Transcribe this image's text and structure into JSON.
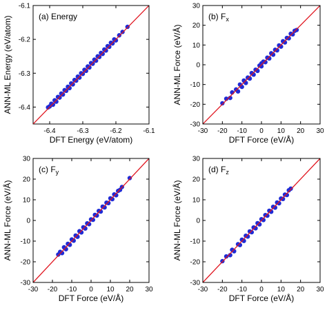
{
  "colors": {
    "points": "#1f2bd6",
    "line": "#e0141e",
    "axes": "#000000"
  },
  "chart_data": [
    {
      "type": "scatter",
      "panel_label": "(a) Energy",
      "xlabel": "DFT Energy (eV/atom)",
      "ylabel": "ANN-ML Energy (eV/atom)",
      "xlim": [
        -6.45,
        -6.1
      ],
      "ylim": [
        -6.45,
        -6.1
      ],
      "xticks": [
        "-6.4",
        "-6.3",
        "-6.2",
        "-6.1"
      ],
      "yticks": [
        "-6.4",
        "-6.3",
        "-6.2",
        "-6.1"
      ],
      "reference_line": "y = x",
      "series": [
        {
          "points": [
            [
              -6.405,
              -6.401
            ],
            [
              -6.4,
              -6.398
            ],
            [
              -6.395,
              -6.39
            ],
            [
              -6.39,
              -6.393
            ],
            [
              -6.385,
              -6.38
            ],
            [
              -6.38,
              -6.384
            ],
            [
              -6.375,
              -6.37
            ],
            [
              -6.37,
              -6.372
            ],
            [
              -6.365,
              -6.36
            ],
            [
              -6.36,
              -6.363
            ],
            [
              -6.355,
              -6.35
            ],
            [
              -6.35,
              -6.352
            ],
            [
              -6.345,
              -6.34
            ],
            [
              -6.34,
              -6.344
            ],
            [
              -6.335,
              -6.33
            ],
            [
              -6.33,
              -6.333
            ],
            [
              -6.325,
              -6.32
            ],
            [
              -6.32,
              -6.322
            ],
            [
              -6.315,
              -6.31
            ],
            [
              -6.31,
              -6.313
            ],
            [
              -6.305,
              -6.3
            ],
            [
              -6.3,
              -6.302
            ],
            [
              -6.295,
              -6.29
            ],
            [
              -6.29,
              -6.293
            ],
            [
              -6.285,
              -6.28
            ],
            [
              -6.28,
              -6.283
            ],
            [
              -6.275,
              -6.27
            ],
            [
              -6.27,
              -6.272
            ],
            [
              -6.265,
              -6.26
            ],
            [
              -6.26,
              -6.263
            ],
            [
              -6.255,
              -6.25
            ],
            [
              -6.25,
              -6.252
            ],
            [
              -6.245,
              -6.24
            ],
            [
              -6.24,
              -6.243
            ],
            [
              -6.235,
              -6.23
            ],
            [
              -6.23,
              -6.233
            ],
            [
              -6.225,
              -6.22
            ],
            [
              -6.22,
              -6.222
            ],
            [
              -6.215,
              -6.21
            ],
            [
              -6.21,
              -6.212
            ],
            [
              -6.205,
              -6.2
            ],
            [
              -6.2,
              -6.203
            ],
            [
              -6.19,
              -6.188
            ],
            [
              -6.18,
              -6.178
            ],
            [
              -6.165,
              -6.163
            ]
          ]
        }
      ]
    },
    {
      "type": "scatter",
      "panel_label": "(b) F",
      "panel_label_sub": "x",
      "xlabel": "DFT Force (eV/Å)",
      "ylabel": "ANN-ML Force (eV/Å)",
      "xlim": [
        -30,
        30
      ],
      "ylim": [
        -30,
        30
      ],
      "xticks": [
        "-30",
        "-20",
        "-10",
        "0",
        "10",
        "20",
        "30"
      ],
      "yticks": [
        "-30",
        "-20",
        "-10",
        "0",
        "10",
        "20",
        "30"
      ],
      "reference_line": "y = x",
      "series": [
        {
          "points": [
            [
              -20,
              -19.5
            ],
            [
              -18,
              -17.2
            ],
            [
              -16,
              -16.8
            ],
            [
              -15,
              -14
            ],
            [
              -13,
              -12.5
            ],
            [
              -12,
              -13.5
            ],
            [
              -11,
              -10
            ],
            [
              -10,
              -11.2
            ],
            [
              -9,
              -8
            ],
            [
              -8,
              -9.2
            ],
            [
              -7,
              -6.5
            ],
            [
              -6,
              -7
            ],
            [
              -5,
              -4.2
            ],
            [
              -4,
              -5
            ],
            [
              -3,
              -2.5
            ],
            [
              -2,
              -3.1
            ],
            [
              -1,
              -0.4
            ],
            [
              0,
              -0.8
            ],
            [
              0,
              0.7
            ],
            [
              1,
              1.6
            ],
            [
              2,
              1.3
            ],
            [
              3,
              3.6
            ],
            [
              4,
              3.2
            ],
            [
              5,
              5.8
            ],
            [
              6,
              5.1
            ],
            [
              7,
              7.6
            ],
            [
              8,
              7.3
            ],
            [
              9,
              9.8
            ],
            [
              10,
              9.2
            ],
            [
              11,
              11.9
            ],
            [
              12,
              11.3
            ],
            [
              13,
              13.6
            ],
            [
              14,
              13.4
            ],
            [
              15,
              15.7
            ],
            [
              16,
              15.4
            ],
            [
              17,
              17.2
            ],
            [
              18,
              17.6
            ]
          ]
        }
      ]
    },
    {
      "type": "scatter",
      "panel_label": "(c) F",
      "panel_label_sub": "y",
      "xlabel": "DFT Force (eV/Å)",
      "ylabel": "ANN-ML Force (eV/Å)",
      "xlim": [
        -30,
        30
      ],
      "ylim": [
        -30,
        30
      ],
      "xticks": [
        "-30",
        "-20",
        "-10",
        "0",
        "10",
        "20",
        "30"
      ],
      "yticks": [
        "-30",
        "-20",
        "-10",
        "0",
        "10",
        "20",
        "30"
      ],
      "reference_line": "y = x",
      "series": [
        {
          "points": [
            [
              -17,
              -16.5
            ],
            [
              -16,
              -15.2
            ],
            [
              -15,
              -15.8
            ],
            [
              -14,
              -13
            ],
            [
              -13,
              -13.9
            ],
            [
              -12,
              -11.3
            ],
            [
              -11,
              -11.8
            ],
            [
              -10,
              -9.2
            ],
            [
              -9,
              -9.8
            ],
            [
              -8,
              -7.3
            ],
            [
              -7,
              -7.9
            ],
            [
              -6,
              -5.2
            ],
            [
              -5,
              -5.8
            ],
            [
              -4,
              -3.3
            ],
            [
              -3,
              -3.9
            ],
            [
              -2,
              -1.4
            ],
            [
              -1,
              -1.8
            ],
            [
              0,
              0.5
            ],
            [
              1,
              0.3
            ],
            [
              2,
              2.7
            ],
            [
              3,
              2.4
            ],
            [
              4,
              4.6
            ],
            [
              5,
              4.3
            ],
            [
              6,
              6.7
            ],
            [
              7,
              6.3
            ],
            [
              8,
              8.6
            ],
            [
              9,
              8.4
            ],
            [
              10,
              10.7
            ],
            [
              11,
              10.3
            ],
            [
              12,
              12.6
            ],
            [
              13,
              12.2
            ],
            [
              14,
              14.3
            ],
            [
              15,
              14.8
            ],
            [
              16,
              16.2
            ],
            [
              20,
              20.5
            ]
          ]
        }
      ]
    },
    {
      "type": "scatter",
      "panel_label": "(d) F",
      "panel_label_sub": "z",
      "xlabel": "DFT Force (eV/Å)",
      "ylabel": "ANN-ML Force (eV/Å)",
      "xlim": [
        -30,
        30
      ],
      "ylim": [
        -30,
        30
      ],
      "xticks": [
        "-30",
        "-20",
        "-10",
        "0",
        "10",
        "20",
        "30"
      ],
      "yticks": [
        "-30",
        "-20",
        "-10",
        "0",
        "10",
        "20",
        "30"
      ],
      "reference_line": "y = x",
      "series": [
        {
          "points": [
            [
              -20,
              -19.7
            ],
            [
              -18,
              -17.4
            ],
            [
              -16,
              -16.8
            ],
            [
              -15,
              -14.2
            ],
            [
              -14,
              -14.9
            ],
            [
              -12,
              -11.5
            ],
            [
              -11,
              -11.9
            ],
            [
              -10,
              -9.3
            ],
            [
              -9,
              -9.9
            ],
            [
              -8,
              -7.4
            ],
            [
              -7,
              -7.8
            ],
            [
              -6,
              -5.3
            ],
            [
              -5,
              -5.7
            ],
            [
              -4,
              -3.4
            ],
            [
              -3,
              -3.8
            ],
            [
              -2,
              -1.3
            ],
            [
              -1,
              -1.9
            ],
            [
              0,
              0.6
            ],
            [
              1,
              0.2
            ],
            [
              2,
              2.6
            ],
            [
              3,
              2.3
            ],
            [
              4,
              4.7
            ],
            [
              5,
              4.2
            ],
            [
              6,
              6.6
            ],
            [
              7,
              6.2
            ],
            [
              8,
              8.7
            ],
            [
              9,
              8.3
            ],
            [
              10,
              10.6
            ],
            [
              11,
              10.4
            ],
            [
              12,
              12.5
            ],
            [
              13,
              12.3
            ],
            [
              14,
              14.6
            ],
            [
              15,
              15.4
            ]
          ]
        }
      ]
    }
  ]
}
